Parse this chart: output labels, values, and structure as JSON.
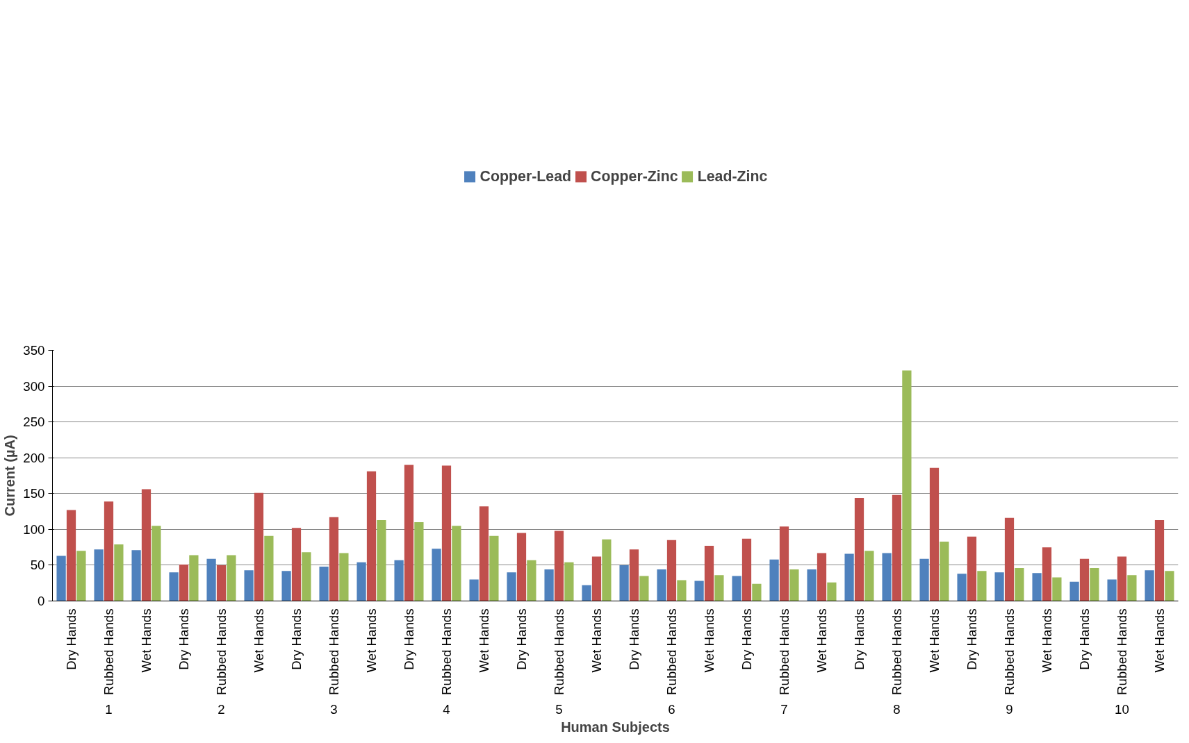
{
  "chart_data": {
    "type": "bar",
    "xlabel": "Human Subjects",
    "ylabel": "Current (µA)",
    "categories": [
      "Dry Hands",
      "Rubbed Hands",
      "Wet Hands",
      "Dry Hands",
      "Rubbed Hands",
      "Wet Hands",
      "Dry Hands",
      "Rubbed Hands",
      "Wet Hands",
      "Dry Hands",
      "Rubbed Hands",
      "Wet Hands",
      "Dry Hands",
      "Rubbed Hands",
      "Wet Hands",
      "Dry Hands",
      "Rubbed Hands",
      "Wet Hands",
      "Dry Hands",
      "Rubbed Hands",
      "Wet Hands",
      "Dry Hands",
      "Rubbed Hands",
      "Wet Hands",
      "Dry Hands",
      "Rubbed Hands",
      "Wet Hands",
      "Dry Hands",
      "Rubbed Hands",
      "Wet Hands"
    ],
    "annotations": [
      "1",
      "2",
      "3",
      "4",
      "5",
      "6",
      "7",
      "8",
      "9",
      "10"
    ],
    "series": [
      {
        "name": "Copper-Lead",
        "color": "#4f81bd",
        "values": [
          63,
          72,
          71,
          40,
          59,
          43,
          42,
          48,
          54,
          57,
          73,
          30,
          40,
          44,
          22,
          50,
          44,
          28,
          35,
          58,
          44,
          66,
          67,
          59,
          38,
          40,
          39,
          27,
          30,
          43
        ]
      },
      {
        "name": "Copper-Zinc",
        "color": "#c0504d",
        "values": [
          127,
          139,
          156,
          51,
          50,
          151,
          102,
          117,
          181,
          190,
          189,
          132,
          95,
          98,
          62,
          72,
          85,
          77,
          87,
          104,
          67,
          144,
          148,
          186,
          90,
          116,
          75,
          59,
          62,
          113
        ]
      },
      {
        "name": "Lead-Zinc",
        "color": "#9bbb59",
        "values": [
          70,
          79,
          105,
          64,
          64,
          91,
          68,
          67,
          113,
          110,
          105,
          91,
          57,
          54,
          86,
          35,
          29,
          36,
          24,
          44,
          26,
          70,
          322,
          83,
          42,
          46,
          33,
          46,
          36,
          42
        ]
      }
    ],
    "ylim": [
      0,
      350
    ],
    "yticks": [
      0,
      50,
      100,
      150,
      200,
      250,
      300,
      350
    ],
    "grid": "y",
    "legend": "top"
  }
}
